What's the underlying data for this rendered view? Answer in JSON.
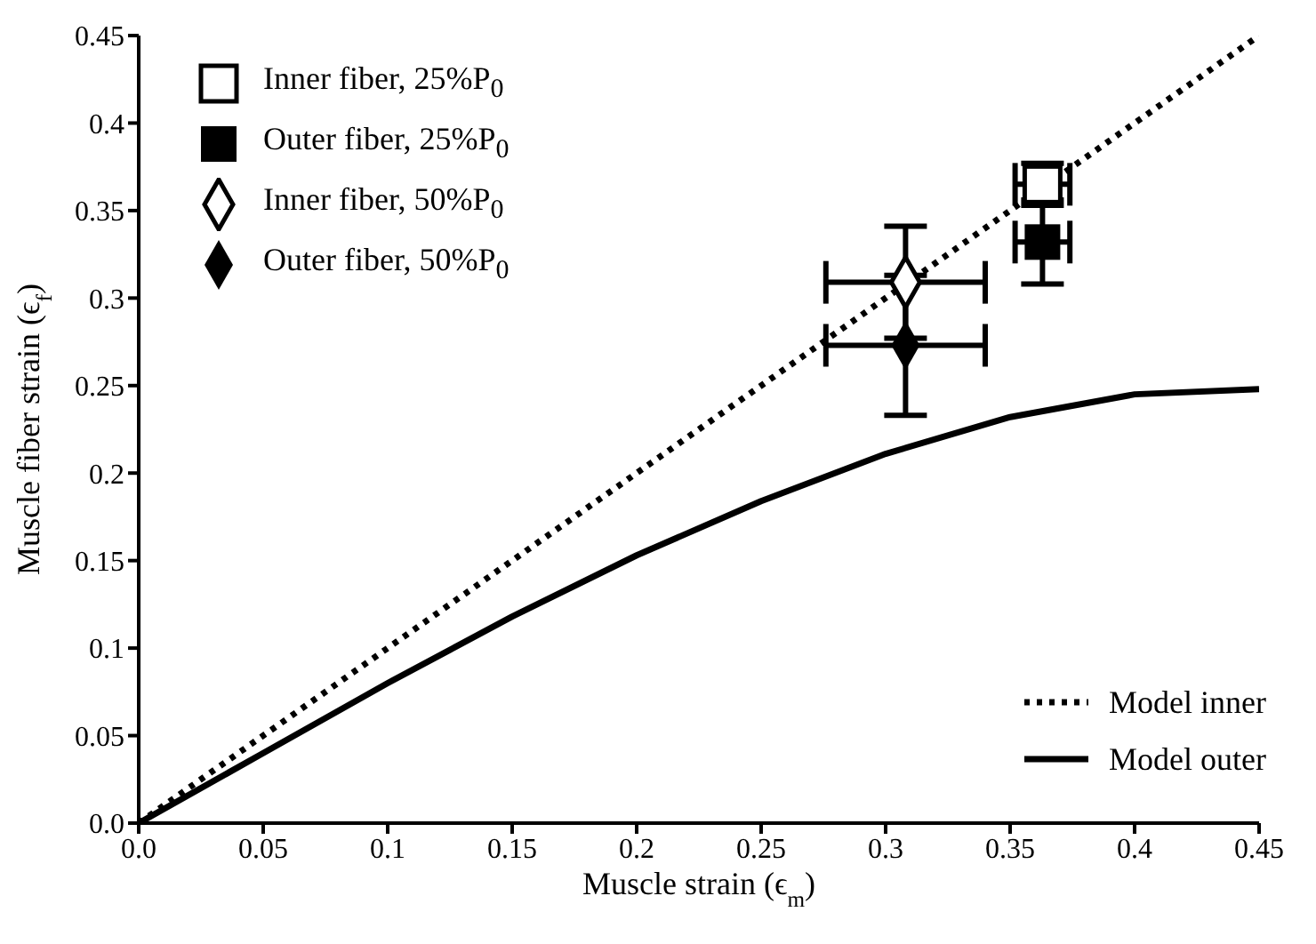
{
  "chart_data": {
    "type": "scatter",
    "xlabel": "Muscle strain (ϵ$_{m}$)",
    "ylabel": "Muscle fiber strain (ϵ$_{f}$)",
    "xlim": [
      0,
      0.45
    ],
    "ylim": [
      0,
      0.45
    ],
    "xticks": [
      {
        "value": 0,
        "label": "0.0"
      },
      0.05,
      0.1,
      0.15,
      0.2,
      0.25,
      0.3,
      0.35,
      0.4,
      0.45
    ],
    "yticks": [
      {
        "value": 0,
        "label": "0.0"
      },
      0.05,
      0.1,
      0.15,
      0.2,
      0.25,
      0.3,
      0.35,
      0.4,
      0.45
    ],
    "grid": false,
    "legend": "top left",
    "series": [
      {
        "name": "Inner fiber, 25%P$_{0}$",
        "marker": "square-open",
        "color": "#000000",
        "x": [
          0.363
        ],
        "values": [
          0.365
        ],
        "errors": [
          0.012
        ],
        "xerrors": [
          0.011
        ]
      },
      {
        "name": "Outer fiber, 25%P$_{0}$",
        "marker": "square",
        "color": "#000000",
        "x": [
          0.363
        ],
        "values": [
          0.332
        ],
        "errors": [
          0.024
        ],
        "xerrors": [
          0.011
        ]
      },
      {
        "name": "Inner fiber, 50%P$_{0}$",
        "marker": "diamond-open",
        "color": "#000000",
        "x": [
          0.308
        ],
        "values": [
          0.309
        ],
        "errors": [
          0.032
        ],
        "xerrors": [
          0.032
        ]
      },
      {
        "name": "Outer fiber, 50%P$_{0}$",
        "marker": "diamond",
        "color": "#000000",
        "x": [
          0.308
        ],
        "values": [
          0.273
        ],
        "errors": [
          0.04
        ],
        "xerrors": [
          0.032
        ]
      },
      {
        "name": "Model inner",
        "type": "line",
        "line_style": "dotted",
        "color": "#000000",
        "x": [
          0,
          0.45
        ],
        "values": [
          0,
          0.45
        ]
      },
      {
        "name": "Model outer",
        "type": "line",
        "line_style": "solid",
        "color": "#000000",
        "x": [
          0,
          0.05,
          0.1,
          0.15,
          0.2,
          0.25,
          0.3,
          0.35,
          0.4,
          0.45
        ],
        "values": [
          0,
          0.04,
          0.08,
          0.118,
          0.153,
          0.184,
          0.211,
          0.232,
          0.245,
          0.248
        ]
      }
    ]
  }
}
